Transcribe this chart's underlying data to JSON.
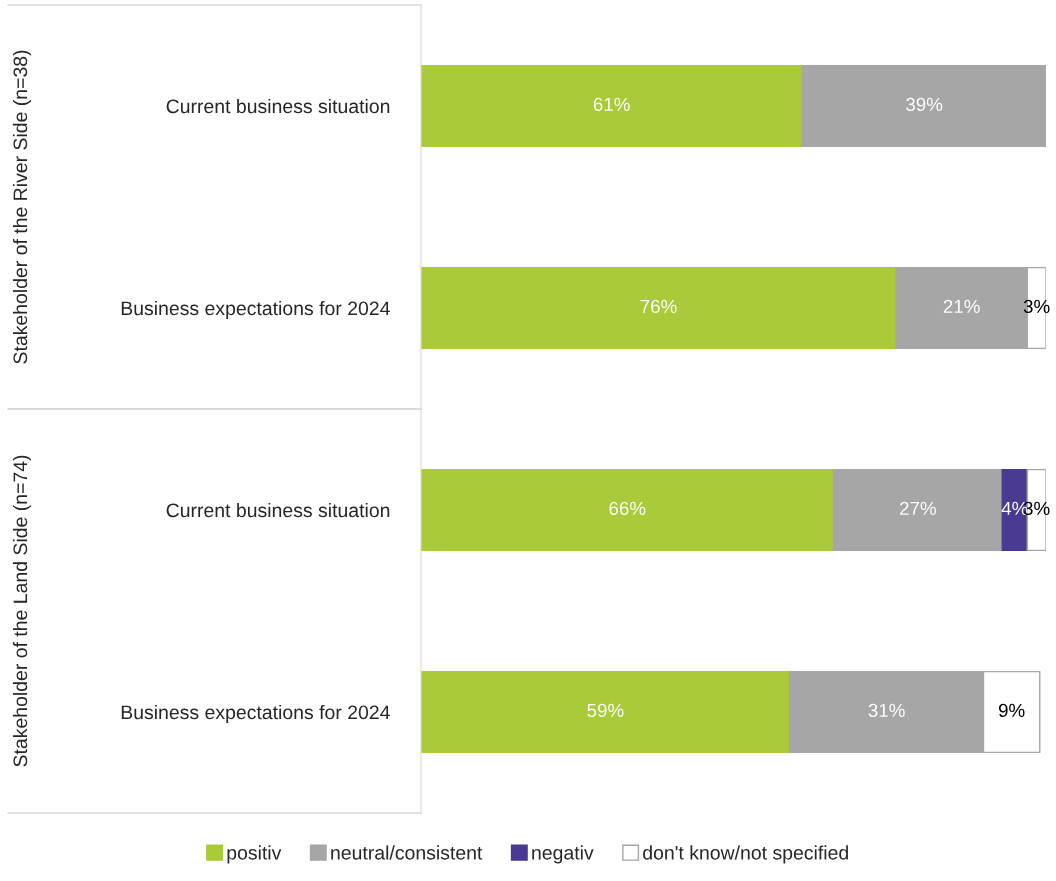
{
  "chart_data": {
    "type": "bar",
    "orientation": "horizontal",
    "stacked": true,
    "categories": [
      "Current business situation",
      "Business expectations for 2024",
      "Current business situation",
      "Business expectations for 2024"
    ],
    "series": [
      {
        "name": "positiv",
        "color": "#a9cb3a",
        "values": [
          61,
          76,
          66,
          59
        ],
        "value_labels": [
          "61%",
          "76%",
          "66%",
          "59%"
        ]
      },
      {
        "name": "neutral/consistent",
        "color": "#a6a6a6",
        "values": [
          39,
          21,
          27,
          31
        ],
        "value_labels": [
          "39%",
          "21%",
          "27%",
          "31%"
        ]
      },
      {
        "name": "negativ",
        "color": "#4b3a91",
        "values": [
          null,
          null,
          4,
          null
        ],
        "value_labels": [
          null,
          null,
          "4%",
          null
        ]
      },
      {
        "name": "don't know/not specified",
        "color": "#ffffff",
        "values": [
          null,
          3,
          3,
          9
        ],
        "value_labels": [
          null,
          "3%",
          "3%",
          "9%"
        ]
      }
    ],
    "xlim": [
      0,
      100
    ],
    "tick_labels": "y",
    "grid": false,
    "legend": "bottom",
    "annotations": [
      "Stakeholder of the River Side (n=38)",
      "Stakeholder of the Land Side (n=74)"
    ]
  }
}
